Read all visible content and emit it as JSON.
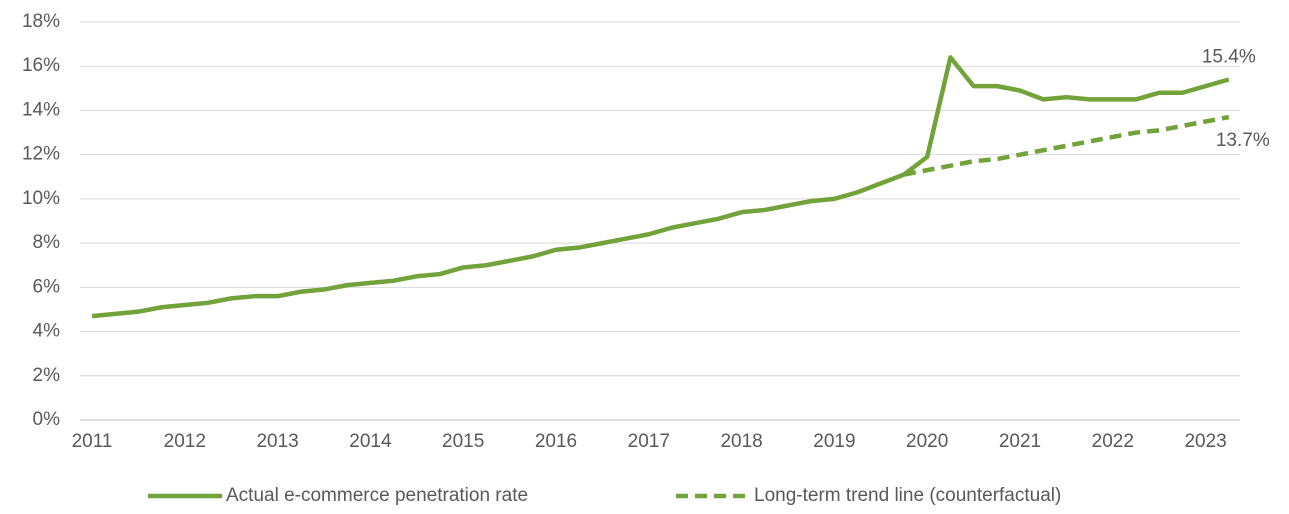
{
  "chart_data": {
    "type": "line",
    "categories": [
      "2011",
      null,
      null,
      null,
      "2012",
      null,
      null,
      null,
      "2013",
      null,
      null,
      null,
      "2014",
      null,
      null,
      null,
      "2015",
      null,
      null,
      null,
      "2016",
      null,
      null,
      null,
      "2017",
      null,
      null,
      null,
      "2018",
      null,
      null,
      null,
      "2019",
      null,
      null,
      null,
      "2020",
      null,
      null,
      null,
      "2021",
      null,
      null,
      null,
      "2022",
      null,
      null,
      null,
      "2023",
      null
    ],
    "series": [
      {
        "name": "Actual e-commerce penetration rate",
        "color": "#72a33a",
        "dash": false,
        "values": [
          4.7,
          4.8,
          4.9,
          5.1,
          5.2,
          5.3,
          5.5,
          5.6,
          5.6,
          5.8,
          5.9,
          6.1,
          6.2,
          6.3,
          6.5,
          6.6,
          6.9,
          7.0,
          7.2,
          7.4,
          7.7,
          7.8,
          8.0,
          8.2,
          8.4,
          8.7,
          8.9,
          9.1,
          9.4,
          9.5,
          9.7,
          9.9,
          10.0,
          10.3,
          10.7,
          11.1,
          11.9,
          16.4,
          15.1,
          15.1,
          14.9,
          14.5,
          14.6,
          14.5,
          14.5,
          14.5,
          14.8,
          14.8,
          15.1,
          15.4
        ],
        "value_labels": [
          null,
          null,
          null,
          null,
          null,
          null,
          null,
          null,
          null,
          null,
          null,
          null,
          null,
          null,
          null,
          null,
          null,
          null,
          null,
          null,
          null,
          null,
          null,
          null,
          null,
          null,
          null,
          null,
          null,
          null,
          null,
          null,
          null,
          null,
          null,
          null,
          null,
          null,
          null,
          null,
          null,
          null,
          null,
          null,
          null,
          null,
          null,
          null,
          null,
          "15.4%"
        ]
      },
      {
        "name": "Long-term trend line (counterfactual)",
        "color": "#72a33a",
        "dash": true,
        "values": [
          null,
          null,
          null,
          null,
          null,
          null,
          null,
          null,
          null,
          null,
          null,
          null,
          null,
          null,
          null,
          null,
          null,
          null,
          null,
          null,
          null,
          null,
          null,
          null,
          null,
          null,
          null,
          null,
          null,
          null,
          null,
          null,
          null,
          null,
          null,
          11.1,
          11.3,
          11.5,
          11.7,
          11.8,
          12.0,
          12.2,
          12.4,
          12.6,
          12.8,
          13.0,
          13.1,
          13.3,
          13.5,
          13.7
        ],
        "value_labels": [
          null,
          null,
          null,
          null,
          null,
          null,
          null,
          null,
          null,
          null,
          null,
          null,
          null,
          null,
          null,
          null,
          null,
          null,
          null,
          null,
          null,
          null,
          null,
          null,
          null,
          null,
          null,
          null,
          null,
          null,
          null,
          null,
          null,
          null,
          null,
          null,
          null,
          null,
          null,
          null,
          null,
          null,
          null,
          null,
          null,
          null,
          null,
          null,
          null,
          "13.7%"
        ]
      }
    ],
    "ylim": [
      0,
      18
    ],
    "yticks": [
      {
        "value": 0,
        "label": "0%"
      },
      {
        "value": 2,
        "label": "2%"
      },
      {
        "value": 4,
        "label": "4%"
      },
      {
        "value": 6,
        "label": "6%"
      },
      {
        "value": 8,
        "label": "8%"
      },
      {
        "value": 10,
        "label": "10%"
      },
      {
        "value": 12,
        "label": "12%"
      },
      {
        "value": 14,
        "label": "14%"
      },
      {
        "value": 16,
        "label": "16%"
      },
      {
        "value": 18,
        "label": "18%"
      }
    ],
    "grid": true,
    "legend": "bottom"
  }
}
